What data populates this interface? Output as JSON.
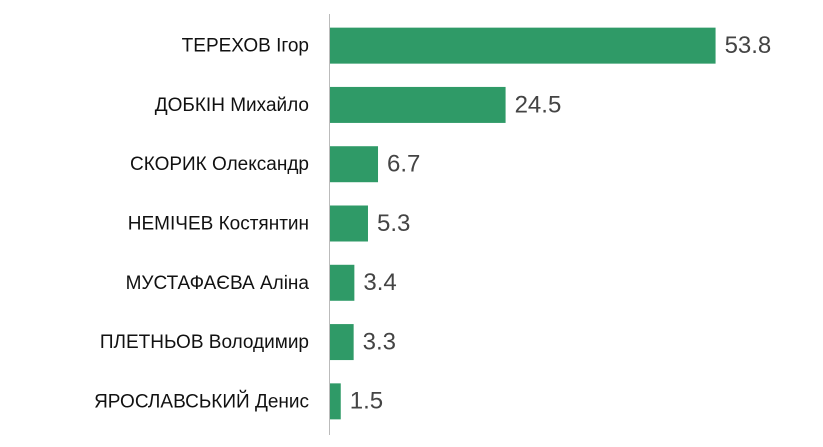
{
  "chart_data": {
    "type": "hbar",
    "categories": [
      "ТЕРЕХОВ Ігор",
      "ДОБКІН Михайло",
      "СКОРИК Олександр",
      "НЕМІЧЕВ Костянтин",
      "МУСТАФАЄВА Аліна",
      "ПЛЕТНЬОВ Володимир",
      "ЯРОСЛАВСЬКИЙ Денис"
    ],
    "values": [
      53.8,
      24.5,
      6.7,
      5.3,
      3.4,
      3.3,
      1.5
    ],
    "color": "#2f9a67",
    "xlim": [
      0,
      60
    ]
  }
}
